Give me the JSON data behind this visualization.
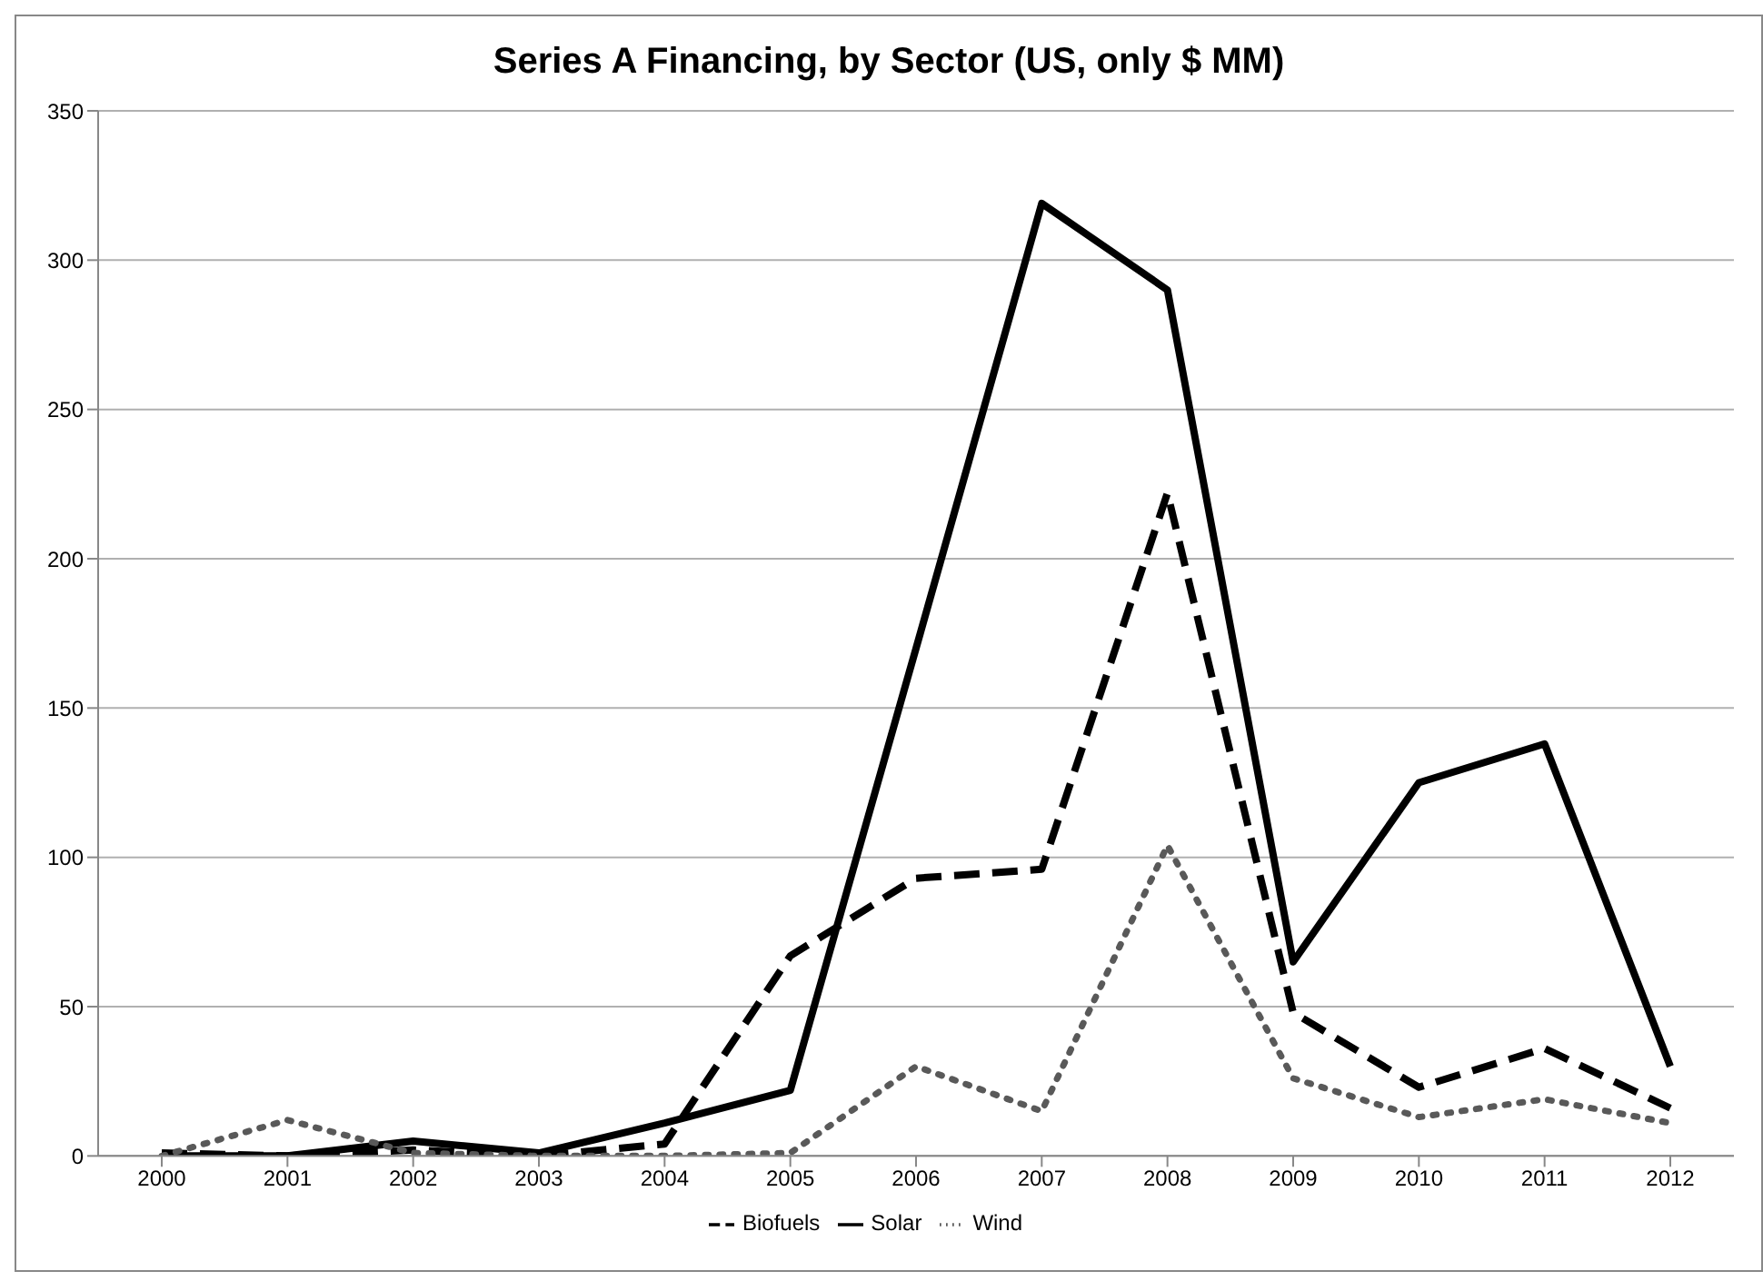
{
  "chart_data": {
    "type": "line",
    "title": "Series A Financing, by Sector (US, only $ MM)",
    "categories": [
      "2000",
      "2001",
      "2002",
      "2003",
      "2004",
      "2005",
      "2006",
      "2007",
      "2008",
      "2009",
      "2010",
      "2011",
      "2012"
    ],
    "series": [
      {
        "name": "Biofuels",
        "color": "#000000",
        "line_style": "dashed",
        "values": [
          1,
          0,
          2,
          0,
          4,
          67,
          93,
          96,
          222,
          48,
          23,
          36,
          16
        ]
      },
      {
        "name": "Solar",
        "color": "#000000",
        "line_style": "solid",
        "values": [
          0,
          0,
          5,
          1,
          11,
          22,
          170,
          319,
          290,
          65,
          125,
          138,
          30
        ]
      },
      {
        "name": "Wind",
        "color": "#595959",
        "line_style": "dotted",
        "values": [
          0,
          12,
          1,
          0,
          0,
          1,
          30,
          15,
          104,
          26,
          13,
          19,
          11
        ]
      }
    ],
    "ylim": [
      0,
      350
    ],
    "yticks": [
      0,
      50,
      100,
      150,
      200,
      250,
      300,
      350
    ],
    "grid": "y",
    "legend": "bottom",
    "marker": "none"
  }
}
